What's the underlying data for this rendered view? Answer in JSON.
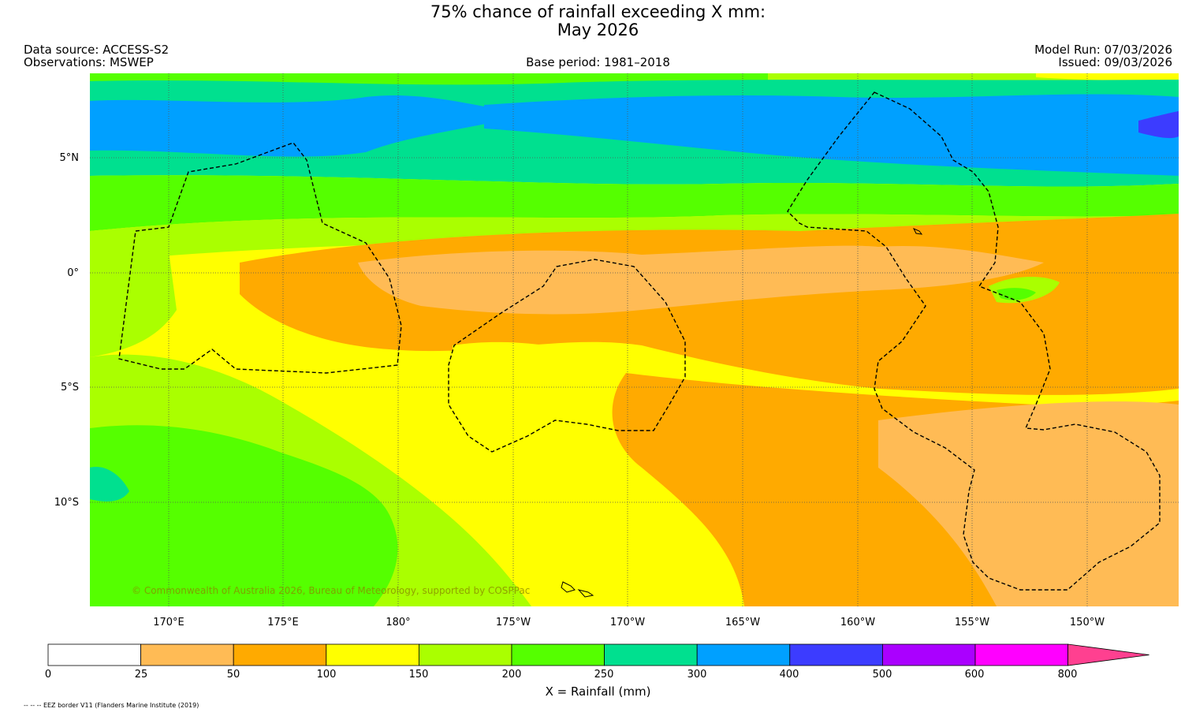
{
  "title": {
    "line1": "75% chance of rainfall exceeding X mm:",
    "line2": "May 2026"
  },
  "header": {
    "data_source": "Data source: ACCESS-S2",
    "observations": "Observations: MSWEP",
    "base_period": "Base period: 1981–2018",
    "model_run": "Model Run: 07/03/2026",
    "issued": "Issued: 09/03/2026"
  },
  "map": {
    "lat_labels": [
      "5°N",
      "0°",
      "5°S",
      "10°S"
    ],
    "lon_labels": [
      "170°E",
      "175°E",
      "180°",
      "175°W",
      "170°W",
      "165°W",
      "160°W",
      "155°W",
      "150°W"
    ],
    "copyright": "© Commonwealth of Australia 2026, Bureau of Meteorology, supported by COSPPac"
  },
  "colorbar": {
    "title": "X = Rainfall (mm)",
    "ticks": [
      "0",
      "25",
      "50",
      "100",
      "150",
      "200",
      "250",
      "300",
      "400",
      "500",
      "600",
      "800"
    ],
    "colors": [
      "#ffffff",
      "#ffbb55",
      "#ffaa00",
      "#ffff00",
      "#aaff00",
      "#55ff00",
      "#00e08f",
      "#00a0ff",
      "#3c3cff",
      "#aa00ff",
      "#ff00ff",
      "#ff4090"
    ]
  },
  "footnote": "-- -- -- EEZ border V11 (Flanders Marine Institute (2019)"
}
